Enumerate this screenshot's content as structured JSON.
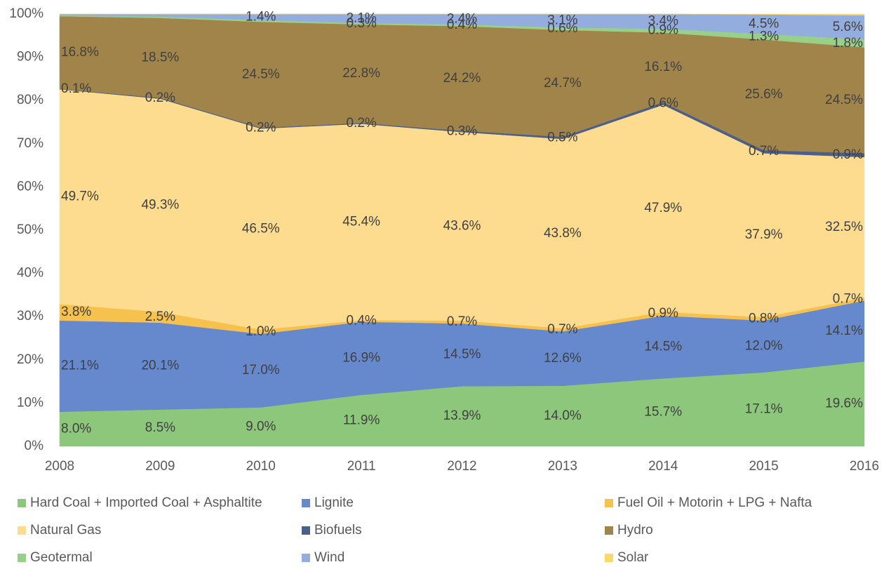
{
  "chart_data": {
    "type": "stacked_area",
    "categories": [
      "2008",
      "2009",
      "2010",
      "2011",
      "2012",
      "2013",
      "2014",
      "2015",
      "2016"
    ],
    "ylim": [
      0,
      100
    ],
    "yticks": [
      {
        "value": 0,
        "label": "0%"
      },
      {
        "value": 10,
        "label": "10%"
      },
      {
        "value": 20,
        "label": "20%"
      },
      {
        "value": 30,
        "label": "30%"
      },
      {
        "value": 40,
        "label": "40%"
      },
      {
        "value": 50,
        "label": "50%"
      },
      {
        "value": 60,
        "label": "60%"
      },
      {
        "value": 70,
        "label": "70%"
      },
      {
        "value": 80,
        "label": "80%"
      },
      {
        "value": 90,
        "label": "90%"
      },
      {
        "value": 100,
        "label": "100%"
      }
    ],
    "legend": "bottom",
    "series": [
      {
        "name": "Hard Coal + Imported Coal + Asphaltite",
        "color": "#8dc77b",
        "values": [
          8.0,
          8.5,
          9.0,
          11.9,
          13.9,
          14.0,
          15.7,
          17.1,
          19.6
        ],
        "value_labels": [
          "8.0%",
          "8.5%",
          "9.0%",
          "11.9%",
          "13.9%",
          "14.0%",
          "15.7%",
          "17.1%",
          "19.6%"
        ]
      },
      {
        "name": "Lignite",
        "color": "#6688cc",
        "values": [
          21.1,
          20.1,
          17.0,
          16.9,
          14.5,
          12.6,
          14.5,
          12.0,
          14.1
        ],
        "value_labels": [
          "21.1%",
          "20.1%",
          "17.0%",
          "16.9%",
          "14.5%",
          "12.6%",
          "14.5%",
          "12.0%",
          "14.1%"
        ]
      },
      {
        "name": "Fuel Oil + Motorin + LPG + Nafta",
        "color": "#f7c14e",
        "values": [
          3.8,
          2.5,
          1.0,
          0.4,
          0.7,
          0.7,
          0.9,
          0.8,
          0.7
        ],
        "value_labels": [
          "3.8%",
          "2.5%",
          "1.0%",
          "0.4%",
          "0.7%",
          "0.7%",
          "0.9%",
          "0.8%",
          "0.7%"
        ]
      },
      {
        "name": "Natural Gas",
        "color": "#fddc90",
        "values": [
          49.7,
          49.3,
          46.5,
          45.4,
          43.6,
          43.8,
          47.9,
          37.9,
          32.5
        ],
        "value_labels": [
          "49.7%",
          "49.3%",
          "46.5%",
          "45.4%",
          "43.6%",
          "43.8%",
          "47.9%",
          "37.9%",
          "32.5%"
        ]
      },
      {
        "name": "Biofuels",
        "color": "#4a5f8c",
        "values": [
          0.1,
          0.2,
          0.2,
          0.2,
          0.3,
          0.5,
          0.6,
          0.7,
          0.9
        ],
        "value_labels": [
          "0.1%",
          "0.2%",
          "0.2%",
          "0.2%",
          "0.3%",
          "0.5%",
          "0.6%",
          "0.7%",
          "0.9%"
        ]
      },
      {
        "name": "Hydro",
        "color": "#a1844a",
        "values": [
          16.8,
          18.5,
          24.5,
          22.8,
          24.2,
          24.7,
          16.1,
          25.6,
          24.5
        ],
        "value_labels": [
          "16.8%",
          "18.5%",
          "24.5%",
          "22.8%",
          "24.2%",
          "24.7%",
          "16.1%",
          "25.6%",
          "24.5%"
        ]
      },
      {
        "name": "Geotermal",
        "color": "#98d08a",
        "values": [
          0.2,
          0.3,
          0.4,
          0.3,
          0.4,
          0.6,
          0.9,
          1.3,
          1.8
        ],
        "value_labels": [
          null,
          null,
          null,
          "0.3%",
          "0.4%",
          "0.6%",
          "0.9%",
          "1.3%",
          "1.8%"
        ]
      },
      {
        "name": "Wind",
        "color": "#94addf",
        "values": [
          0.3,
          0.6,
          1.4,
          2.1,
          2.4,
          3.1,
          3.4,
          4.5,
          5.6
        ],
        "value_labels": [
          null,
          null,
          "1.4%",
          "2.1%",
          "2.4%",
          "3.1%",
          "3.4%",
          "4.5%",
          "5.6%"
        ]
      },
      {
        "name": "Solar",
        "color": "#fcd866",
        "values": [
          0,
          0,
          0,
          0,
          0,
          0,
          0,
          0.1,
          0.3
        ]
      }
    ]
  }
}
